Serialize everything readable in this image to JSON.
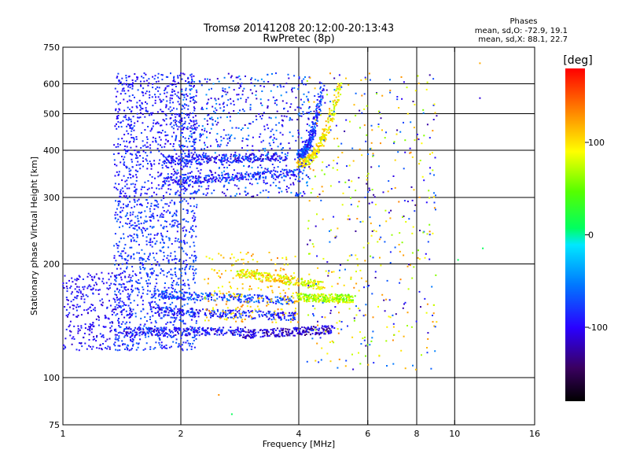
{
  "chart_data": {
    "type": "scatter",
    "title": "Tromsø 20141208 20:12:00-20:13:43",
    "subtitle": "RwPretec (8p)",
    "stats": {
      "heading": "Phases",
      "line1": "mean, sd,O: -72.9, 19.1",
      "line2": "mean, sd,X:  88.1, 22.7"
    },
    "xlabel": "Frequency [MHz]",
    "ylabel": "Stationary phase Virtual Height [km]",
    "x_scale": "log",
    "y_scale": "log",
    "xlim": [
      1,
      16
    ],
    "ylim": [
      75,
      750
    ],
    "x_ticks": [
      1,
      2,
      4,
      6,
      8,
      10,
      16
    ],
    "y_ticks": [
      75,
      100,
      200,
      300,
      400,
      500,
      600,
      750
    ],
    "x_gridlines": [
      2,
      4,
      6,
      8,
      10
    ],
    "y_gridlines": [
      100,
      200,
      300,
      400,
      500,
      600
    ],
    "grid": true,
    "colorbar": {
      "label": "[deg]",
      "range": [
        -180,
        180
      ],
      "ticks": [
        100,
        0,
        -100
      ]
    },
    "traces": [
      {
        "name_hint": "O-low",
        "x_start": 1.45,
        "x_end": 2.9,
        "y_start": 132,
        "y_end": 133,
        "phase": -95
      },
      {
        "name_hint": "O-low2",
        "x_start": 2.8,
        "x_end": 4.9,
        "y_start": 130,
        "y_end": 134,
        "phase": -110
      },
      {
        "name_hint": "O-150",
        "x_start": 1.7,
        "x_end": 4.0,
        "y_start": 150,
        "y_end": 145,
        "phase": -90
      },
      {
        "name_hint": "O-165",
        "x_start": 1.7,
        "x_end": 3.9,
        "y_start": 166,
        "y_end": 160,
        "phase": -75
      },
      {
        "name_hint": "X-165",
        "x_start": 4.0,
        "x_end": 5.5,
        "y_start": 163,
        "y_end": 162,
        "phase": 70
      },
      {
        "name_hint": "X-185",
        "x_start": 2.8,
        "x_end": 4.6,
        "y_start": 190,
        "y_end": 175,
        "phase": 90
      },
      {
        "name_hint": "O-F",
        "x_start": 1.8,
        "x_end": 4.1,
        "y_start": 330,
        "y_end": 350,
        "phase": -85
      },
      {
        "name_hint": "O-F2",
        "x_start": 1.8,
        "x_end": 3.7,
        "y_start": 375,
        "y_end": 385,
        "phase": -95
      },
      {
        "name_hint": "X-F",
        "x_start": 4.0,
        "x_end": 5.1,
        "y_start": 370,
        "y_end": 600,
        "phase": 95
      },
      {
        "name_hint": "O-Fcusp",
        "x_start": 4.0,
        "x_end": 4.6,
        "y_start": 390,
        "y_end": 600,
        "phase": -80
      }
    ]
  }
}
